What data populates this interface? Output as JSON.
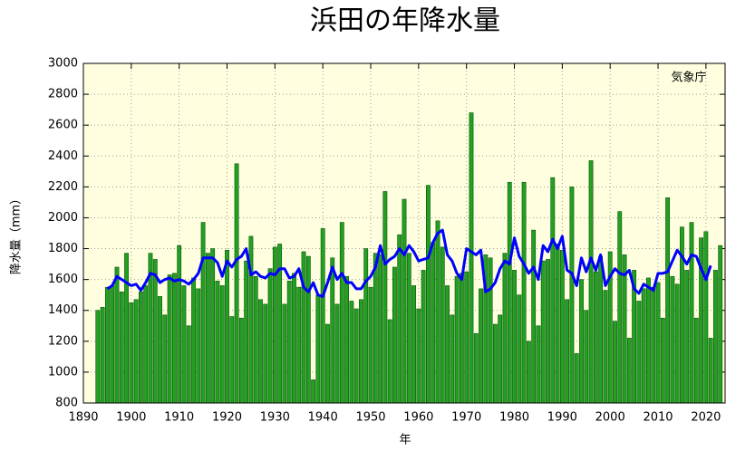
{
  "chart_data": {
    "type": "bar-line",
    "title": "浜田の年降水量",
    "ylabel": "降水量（mm）",
    "xlabel": "年",
    "annotation": "気象庁",
    "xlim": [
      1890,
      2024
    ],
    "xticks": [
      1890,
      1900,
      1910,
      1920,
      1930,
      1940,
      1950,
      1960,
      1970,
      1980,
      1990,
      2000,
      2010,
      2020
    ],
    "ylim": [
      800,
      3000
    ],
    "yticks": [
      800,
      1000,
      1200,
      1400,
      1600,
      1800,
      2000,
      2200,
      2400,
      2600,
      2800,
      3000
    ],
    "grid": true,
    "background": "#ffffe0",
    "x": [
      1893,
      1894,
      1895,
      1896,
      1897,
      1898,
      1899,
      1900,
      1901,
      1902,
      1903,
      1904,
      1905,
      1906,
      1907,
      1908,
      1909,
      1910,
      1911,
      1912,
      1913,
      1914,
      1915,
      1916,
      1917,
      1918,
      1919,
      1920,
      1921,
      1922,
      1923,
      1924,
      1925,
      1926,
      1927,
      1928,
      1929,
      1930,
      1931,
      1932,
      1933,
      1934,
      1935,
      1936,
      1937,
      1938,
      1939,
      1940,
      1941,
      1942,
      1943,
      1944,
      1945,
      1946,
      1947,
      1948,
      1949,
      1950,
      1951,
      1952,
      1953,
      1954,
      1955,
      1956,
      1957,
      1958,
      1959,
      1960,
      1961,
      1962,
      1963,
      1964,
      1965,
      1966,
      1967,
      1968,
      1969,
      1970,
      1971,
      1972,
      1973,
      1974,
      1975,
      1976,
      1977,
      1978,
      1979,
      1980,
      1981,
      1982,
      1983,
      1984,
      1985,
      1986,
      1987,
      1988,
      1989,
      1990,
      1991,
      1992,
      1993,
      1994,
      1995,
      1996,
      1997,
      1998,
      1999,
      2000,
      2001,
      2002,
      2003,
      2004,
      2005,
      2006,
      2007,
      2008,
      2009,
      2010,
      2011,
      2012,
      2013,
      2014,
      2015,
      2016,
      2017,
      2018,
      2019,
      2020,
      2021,
      2022,
      2023
    ],
    "series": [
      {
        "type": "bar",
        "color": "#22a022",
        "values": [
          1400,
          1420,
          1550,
          1560,
          1680,
          1520,
          1770,
          1450,
          1470,
          1520,
          1560,
          1770,
          1730,
          1490,
          1370,
          1630,
          1640,
          1820,
          1560,
          1300,
          1610,
          1540,
          1970,
          1770,
          1800,
          1590,
          1560,
          1790,
          1360,
          2350,
          1350,
          1720,
          1880,
          1620,
          1470,
          1440,
          1670,
          1810,
          1830,
          1440,
          1590,
          1640,
          1550,
          1780,
          1750,
          950,
          1500,
          1930,
          1310,
          1740,
          1440,
          1970,
          1620,
          1460,
          1410,
          1470,
          1800,
          1550,
          1770,
          1760,
          2170,
          1340,
          1680,
          1890,
          2120,
          1770,
          1560,
          1410,
          1660,
          2210,
          1840,
          1980,
          1810,
          1560,
          1370,
          1620,
          1640,
          1650,
          2680,
          1250,
          1540,
          1760,
          1740,
          1310,
          1370,
          1770,
          2230,
          1660,
          1500,
          2230,
          1200,
          1920,
          1300,
          1720,
          1730,
          2260,
          1830,
          1790,
          1470,
          2200,
          1120,
          1600,
          1400,
          2370,
          1650,
          1750,
          1530,
          1780,
          1330,
          2040,
          1760,
          1220,
          1660,
          1460,
          1540,
          1610,
          1550,
          1580,
          1350,
          2130,
          1620,
          1570,
          1940,
          1660,
          1970,
          1350,
          1870,
          1910,
          1220,
          1660,
          1820
        ]
      },
      {
        "type": "line",
        "color": "#0000ff",
        "values": [
          null,
          null,
          1540,
          1560,
          1620,
          1600,
          1580,
          1560,
          1570,
          1530,
          1580,
          1640,
          1630,
          1580,
          1600,
          1610,
          1590,
          1600,
          1590,
          1570,
          1600,
          1640,
          1740,
          1740,
          1740,
          1710,
          1620,
          1720,
          1680,
          1730,
          1750,
          1800,
          1630,
          1650,
          1620,
          1610,
          1640,
          1630,
          1670,
          1670,
          1610,
          1620,
          1670,
          1550,
          1520,
          1580,
          1500,
          1490,
          1580,
          1680,
          1600,
          1640,
          1580,
          1580,
          1540,
          1540,
          1590,
          1620,
          1680,
          1820,
          1700,
          1730,
          1750,
          1800,
          1760,
          1820,
          1780,
          1720,
          1730,
          1740,
          1840,
          1900,
          1920,
          1760,
          1720,
          1640,
          1600,
          1800,
          1780,
          1760,
          1790,
          1520,
          1540,
          1580,
          1670,
          1720,
          1700,
          1870,
          1750,
          1700,
          1640,
          1680,
          1600,
          1820,
          1780,
          1860,
          1800,
          1880,
          1660,
          1640,
          1560,
          1740,
          1650,
          1740,
          1660,
          1760,
          1560,
          1620,
          1670,
          1640,
          1630,
          1660,
          1540,
          1510,
          1570,
          1550,
          1530,
          1640,
          1640,
          1650,
          1720,
          1790,
          1750,
          1700,
          1760,
          1750,
          1670,
          1600,
          1690,
          null,
          null
        ]
      }
    ]
  }
}
